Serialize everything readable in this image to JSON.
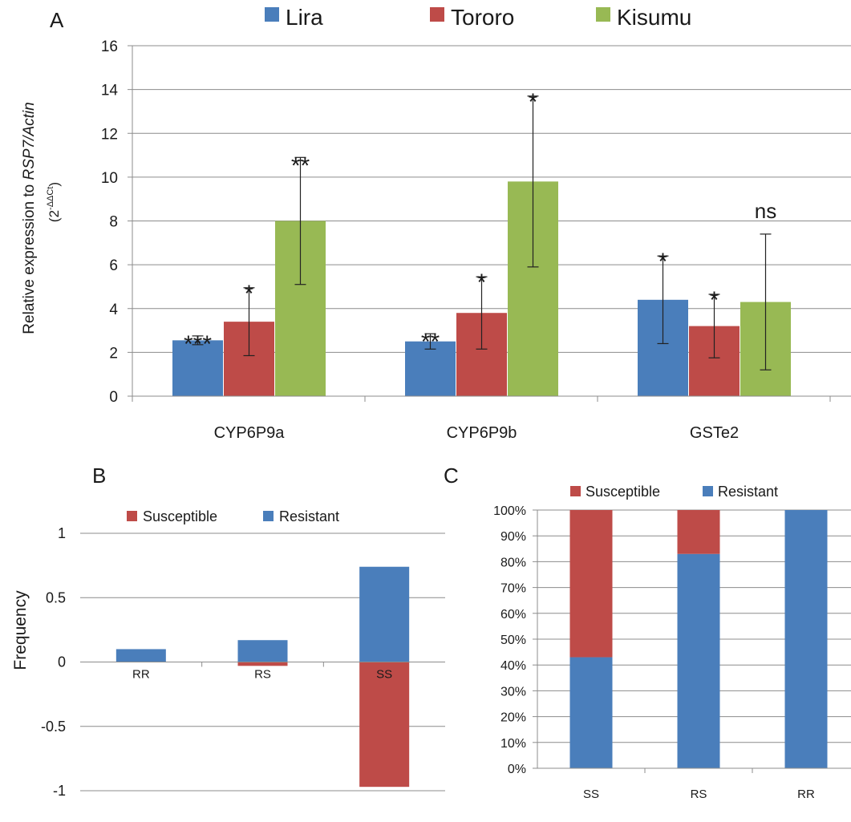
{
  "colors": {
    "lira": "#4a7ebb",
    "tororo": "#be4b48",
    "kisumu": "#98b954",
    "susceptible": "#be4b48",
    "resistant": "#4a7ebb",
    "grid": "#8c8c8c",
    "axis": "#8c8c8c",
    "text": "#1a1a1a"
  },
  "chart_data": [
    {
      "panel": "A",
      "type": "bar",
      "ylabel_main": "Relative  expression to ",
      "ylabel_italic": "RSP7/Actin",
      "ylabel_formula": "(2",
      "ylabel_sup": "-ΔΔCt",
      "ylabel_close": ")",
      "ylim": [
        0,
        16
      ],
      "yticks": [
        "0",
        "2",
        "4",
        "6",
        "8",
        "10",
        "12",
        "14",
        "16"
      ],
      "grid": true,
      "legend_position": "top",
      "categories": [
        "CYP6P9a",
        "CYP6P9b",
        "GSTe2"
      ],
      "series": [
        {
          "name": "Lira",
          "values": [
            2.55,
            2.5,
            4.4
          ],
          "err": [
            0.2,
            0.35,
            2.0
          ],
          "sig": [
            "***",
            "**",
            "*"
          ]
        },
        {
          "name": "Tororo",
          "values": [
            3.4,
            3.8,
            3.2
          ],
          "err": [
            1.55,
            1.65,
            1.45
          ],
          "sig": [
            "*",
            "*",
            "*"
          ]
        },
        {
          "name": "Kisumu",
          "values": [
            8.0,
            9.8,
            4.3
          ],
          "err": [
            2.9,
            3.9,
            3.1
          ],
          "sig": [
            "**",
            "*",
            "ns"
          ]
        }
      ]
    },
    {
      "panel": "B",
      "type": "bar",
      "ylabel": "Frequency",
      "ylim": [
        -1,
        1
      ],
      "yticks": [
        "-1",
        "-0.5",
        "0",
        "0.5",
        "1"
      ],
      "grid": true,
      "legend_position": "top",
      "categories": [
        "RR",
        "RS",
        "SS"
      ],
      "series": [
        {
          "name": "Susceptible",
          "values": [
            0,
            -0.03,
            -0.97
          ]
        },
        {
          "name": "Resistant",
          "values": [
            0.1,
            0.17,
            0.74
          ]
        }
      ]
    },
    {
      "panel": "C",
      "type": "bar",
      "stacked": true,
      "ylim": [
        0,
        100
      ],
      "yticks": [
        "0%",
        "10%",
        "20%",
        "30%",
        "40%",
        "50%",
        "60%",
        "70%",
        "80%",
        "90%",
        "100%"
      ],
      "grid": true,
      "legend_position": "top",
      "categories": [
        "SS",
        "RS",
        "RR"
      ],
      "series": [
        {
          "name": "Susceptible",
          "values": [
            57,
            17,
            0
          ]
        },
        {
          "name": "Resistant",
          "values": [
            43,
            83,
            100
          ]
        }
      ]
    }
  ]
}
